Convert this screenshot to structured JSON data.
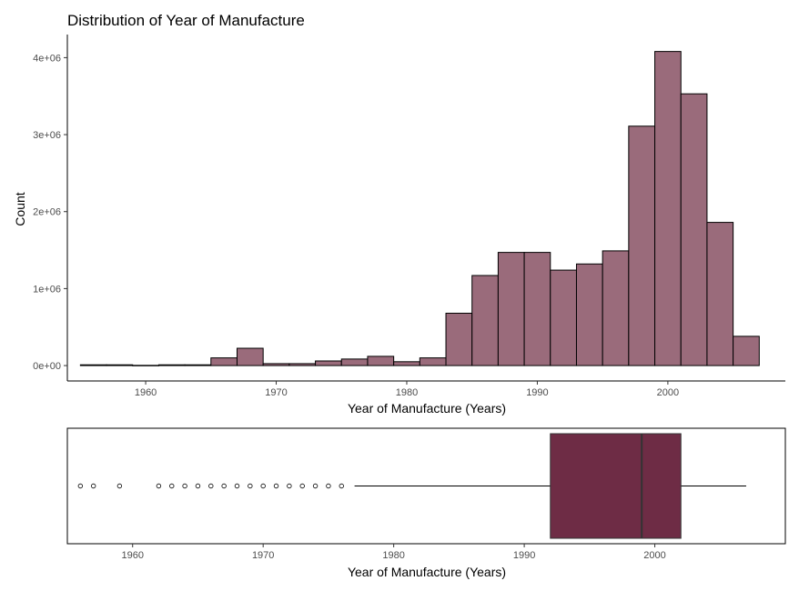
{
  "chart_data": [
    {
      "type": "bar",
      "subtype": "histogram",
      "title": "Distribution of Year of Manufacture",
      "xlabel": "Year of Manufacture (Years)",
      "ylabel": "Count",
      "bin_width": 2,
      "x": [
        1956,
        1958,
        1960,
        1962,
        1964,
        1966,
        1968,
        1970,
        1972,
        1974,
        1976,
        1978,
        1980,
        1982,
        1984,
        1986,
        1988,
        1990,
        1992,
        1994,
        1996,
        1998,
        2000,
        2002,
        2004,
        2006
      ],
      "values": [
        10000,
        10000,
        3000,
        10000,
        10000,
        100000,
        225000,
        25000,
        25000,
        60000,
        85000,
        120000,
        50000,
        100000,
        680000,
        1170000,
        1470000,
        1470000,
        1240000,
        1320000,
        1490000,
        3110000,
        4080000,
        3530000,
        1860000,
        380000
      ],
      "xlim": [
        1954,
        2009
      ],
      "ylim": [
        -200000,
        4300000
      ],
      "xticks": [
        1960,
        1970,
        1980,
        1990,
        2000
      ],
      "yticks": [
        0,
        1000000,
        2000000,
        3000000,
        4000000
      ],
      "ytick_labels": [
        "0e+00",
        "1e+06",
        "2e+06",
        "3e+06",
        "4e+06"
      ],
      "fill_color": "#9a6b7b",
      "grid": false,
      "legend": "none"
    },
    {
      "type": "boxplot",
      "xlabel": "Year of Manufacture (Years)",
      "q1": 1992,
      "median": 1999,
      "q3": 2002,
      "whisker_low": 1977,
      "whisker_high": 2007,
      "outliers": [
        1956,
        1957,
        1959,
        1962,
        1963,
        1964,
        1965,
        1966,
        1967,
        1968,
        1969,
        1970,
        1971,
        1972,
        1973,
        1974,
        1975,
        1976
      ],
      "xlim": [
        1955,
        2010
      ],
      "xticks": [
        1960,
        1970,
        1980,
        1990,
        2000
      ],
      "fill_color": "#6e2c45",
      "median_color": "#333333",
      "legend": "none"
    }
  ]
}
